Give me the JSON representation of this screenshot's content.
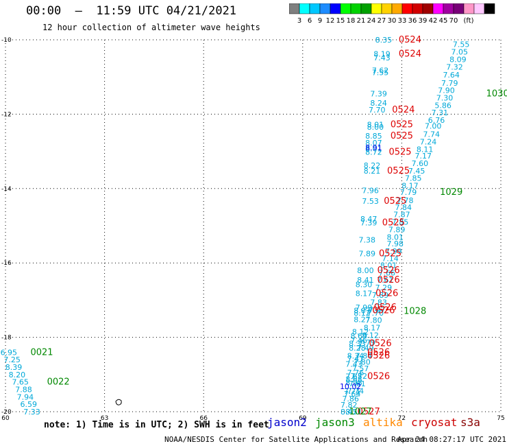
{
  "header": {
    "title": "00:00  –  11:59 UTC 04/21/2021",
    "subtitle": "12 hour collection of altimeter wave heights"
  },
  "colorbar": {
    "unit": "(ft)",
    "colors": [
      "#7f7f7f",
      "#00ffff",
      "#00c8ff",
      "#1e8cff",
      "#0000ff",
      "#00ff00",
      "#00d200",
      "#00a000",
      "#ffff00",
      "#ffd200",
      "#ffaa00",
      "#ff0000",
      "#d20000",
      "#a00000",
      "#ff00ff",
      "#a000a0",
      "#780078",
      "#ff96c8",
      "#ffc8ff",
      "#000000"
    ],
    "labels": [
      "3",
      "6",
      "9",
      "12",
      "15",
      "18",
      "21",
      "24",
      "27",
      "30",
      "33",
      "36",
      "39",
      "42",
      "45",
      "70"
    ]
  },
  "axes": {
    "x_ticks": [
      "60",
      "63",
      "66",
      "69",
      "72",
      "75"
    ],
    "y_ticks": [
      "-10",
      "-12",
      "-14",
      "-16",
      "-18",
      "-20"
    ],
    "xlim": [
      60,
      75
    ],
    "ylim": [
      -20,
      -10
    ]
  },
  "footer": {
    "note": "note: 1) Time is in UTC; 2) SWH is in feet",
    "sats": [
      {
        "name": "jason2",
        "color": "#0000cc"
      },
      {
        "name": "jason3",
        "color": "#008800"
      },
      {
        "name": "altika",
        "color": "#ff8800"
      },
      {
        "name": "cryosat",
        "color": "#cc0000"
      },
      {
        "name": "s3a",
        "color": "#880000"
      }
    ],
    "credit": "NOAA/NESDIS Center for Satellite Applications and Research",
    "timestamp": "Apr 24 08:27:17 UTC 2021"
  },
  "chart_data": {
    "type": "scatter",
    "cyan_points": [
      {
        "lon": 71.45,
        "lat": -10.0,
        "v": "8.35"
      },
      {
        "lon": 71.4,
        "lat": -10.38,
        "v": "8.19"
      },
      {
        "lon": 71.4,
        "lat": -10.48,
        "v": "7.43"
      },
      {
        "lon": 71.35,
        "lat": -10.82,
        "v": "7.62"
      },
      {
        "lon": 71.35,
        "lat": -10.88,
        "v": "7.55"
      },
      {
        "lon": 71.3,
        "lat": -11.45,
        "v": "7.39"
      },
      {
        "lon": 71.3,
        "lat": -11.7,
        "v": "8.24"
      },
      {
        "lon": 71.25,
        "lat": -11.88,
        "v": "7.70"
      },
      {
        "lon": 71.2,
        "lat": -12.28,
        "v": "8.01"
      },
      {
        "lon": 71.2,
        "lat": -12.34,
        "v": "8.00"
      },
      {
        "lon": 71.15,
        "lat": -12.58,
        "v": "8.85"
      },
      {
        "lon": 71.15,
        "lat": -12.77,
        "v": "8.07"
      },
      {
        "lon": 71.15,
        "lat": -12.92,
        "v": "8.01"
      },
      {
        "lon": 71.15,
        "lat": -13.02,
        "v": "8.72"
      },
      {
        "lon": 71.1,
        "lat": -13.38,
        "v": "8.22"
      },
      {
        "lon": 71.1,
        "lat": -13.52,
        "v": "8.21"
      },
      {
        "lon": 71.05,
        "lat": -14.05,
        "v": "7.96"
      },
      {
        "lon": 71.05,
        "lat": -14.34,
        "v": "7.53"
      },
      {
        "lon": 71.0,
        "lat": -14.82,
        "v": "8.47"
      },
      {
        "lon": 71.0,
        "lat": -14.92,
        "v": "7.39"
      },
      {
        "lon": 70.95,
        "lat": -15.38,
        "v": "7.38"
      },
      {
        "lon": 70.95,
        "lat": -15.75,
        "v": "7.89"
      },
      {
        "lon": 70.9,
        "lat": -16.2,
        "v": "8.00"
      },
      {
        "lon": 70.9,
        "lat": -16.46,
        "v": "8.41"
      },
      {
        "lon": 70.85,
        "lat": -16.58,
        "v": "8.30"
      },
      {
        "lon": 70.85,
        "lat": -16.82,
        "v": "8.17"
      },
      {
        "lon": 70.85,
        "lat": -17.2,
        "v": "7.99"
      },
      {
        "lon": 70.8,
        "lat": -17.28,
        "v": "8.07"
      },
      {
        "lon": 70.8,
        "lat": -17.34,
        "v": "8.12"
      },
      {
        "lon": 70.8,
        "lat": -17.52,
        "v": "8.27"
      },
      {
        "lon": 70.75,
        "lat": -17.85,
        "v": "8.12"
      },
      {
        "lon": 70.7,
        "lat": -17.96,
        "v": "8.69"
      },
      {
        "lon": 70.7,
        "lat": -18.08,
        "v": "7.46"
      },
      {
        "lon": 70.65,
        "lat": -18.16,
        "v": "8.33"
      },
      {
        "lon": 70.65,
        "lat": -18.28,
        "v": "8.28"
      },
      {
        "lon": 70.6,
        "lat": -18.5,
        "v": "8.34"
      },
      {
        "lon": 70.6,
        "lat": -18.58,
        "v": "7.47"
      },
      {
        "lon": 70.55,
        "lat": -18.72,
        "v": "7.43"
      },
      {
        "lon": 70.6,
        "lat": -18.95,
        "v": "7.76"
      },
      {
        "lon": 70.55,
        "lat": -19.05,
        "v": "7.65"
      },
      {
        "lon": 70.55,
        "lat": -19.12,
        "v": "8.68"
      },
      {
        "lon": 70.55,
        "lat": -19.22,
        "v": "8.98"
      },
      {
        "lon": 70.5,
        "lat": -19.45,
        "v": "7.71"
      },
      {
        "lon": 70.5,
        "lat": -19.52,
        "v": "7.64"
      },
      {
        "lon": 70.45,
        "lat": -19.65,
        "v": "7.86"
      },
      {
        "lon": 70.4,
        "lat": -19.82,
        "v": "7.82"
      },
      {
        "lon": 70.4,
        "lat": -20.0,
        "v": "8.47"
      },
      {
        "lon": 70.55,
        "lat": -20.0,
        "v": "8.51"
      },
      {
        "lon": 73.8,
        "lat": -10.12,
        "v": "7.55"
      },
      {
        "lon": 73.75,
        "lat": -10.32,
        "v": "7.05"
      },
      {
        "lon": 73.7,
        "lat": -10.53,
        "v": "8.09"
      },
      {
        "lon": 73.6,
        "lat": -10.73,
        "v": "7.32"
      },
      {
        "lon": 73.5,
        "lat": -10.94,
        "v": "7.64"
      },
      {
        "lon": 73.45,
        "lat": -11.16,
        "v": "7.79"
      },
      {
        "lon": 73.35,
        "lat": -11.36,
        "v": "7.90"
      },
      {
        "lon": 73.3,
        "lat": -11.56,
        "v": "7.30"
      },
      {
        "lon": 73.25,
        "lat": -11.76,
        "v": "5.86"
      },
      {
        "lon": 73.15,
        "lat": -11.96,
        "v": "7.31"
      },
      {
        "lon": 73.05,
        "lat": -12.16,
        "v": "6.76"
      },
      {
        "lon": 72.95,
        "lat": -12.32,
        "v": "7.00"
      },
      {
        "lon": 72.9,
        "lat": -12.54,
        "v": "7.74"
      },
      {
        "lon": 72.8,
        "lat": -12.74,
        "v": "7.24"
      },
      {
        "lon": 72.7,
        "lat": -12.94,
        "v": "8.11"
      },
      {
        "lon": 72.65,
        "lat": -13.12,
        "v": "7.17"
      },
      {
        "lon": 72.55,
        "lat": -13.32,
        "v": "7.60"
      },
      {
        "lon": 72.45,
        "lat": -13.52,
        "v": "7.45"
      },
      {
        "lon": 72.35,
        "lat": -13.72,
        "v": "7.85"
      },
      {
        "lon": 72.25,
        "lat": -13.92,
        "v": "8.17"
      },
      {
        "lon": 72.2,
        "lat": -14.1,
        "v": "7.79"
      },
      {
        "lon": 72.1,
        "lat": -14.32,
        "v": "7.78"
      },
      {
        "lon": 72.05,
        "lat": -14.5,
        "v": "7.84"
      },
      {
        "lon": 72.0,
        "lat": -14.7,
        "v": "7.87"
      },
      {
        "lon": 71.95,
        "lat": -14.9,
        "v": "7.85"
      },
      {
        "lon": 71.85,
        "lat": -15.1,
        "v": "7.89"
      },
      {
        "lon": 71.8,
        "lat": -15.3,
        "v": "8.01"
      },
      {
        "lon": 71.8,
        "lat": -15.48,
        "v": "7.98"
      },
      {
        "lon": 71.75,
        "lat": -15.68,
        "v": "7.99"
      },
      {
        "lon": 71.65,
        "lat": -15.88,
        "v": "7.14"
      },
      {
        "lon": 71.6,
        "lat": -16.06,
        "v": "8.01"
      },
      {
        "lon": 71.55,
        "lat": -16.26,
        "v": "7.66"
      },
      {
        "lon": 71.5,
        "lat": -16.46,
        "v": "7.61"
      },
      {
        "lon": 71.45,
        "lat": -16.66,
        "v": "7.29"
      },
      {
        "lon": 71.35,
        "lat": -16.86,
        "v": "7.89"
      },
      {
        "lon": 71.3,
        "lat": -17.06,
        "v": "7.83"
      },
      {
        "lon": 71.25,
        "lat": -17.26,
        "v": "7.97"
      },
      {
        "lon": 71.2,
        "lat": -17.34,
        "v": "7.70"
      },
      {
        "lon": 71.15,
        "lat": -17.54,
        "v": "7.80"
      },
      {
        "lon": 71.1,
        "lat": -17.74,
        "v": "8.17"
      },
      {
        "lon": 71.05,
        "lat": -17.94,
        "v": "8.12"
      },
      {
        "lon": 70.95,
        "lat": -18.14,
        "v": "7.79"
      },
      {
        "lon": 70.9,
        "lat": -18.28,
        "v": "7.49"
      },
      {
        "lon": 70.85,
        "lat": -18.5,
        "v": "7.84"
      },
      {
        "lon": 70.8,
        "lat": -18.66,
        "v": "7.80"
      },
      {
        "lon": 70.75,
        "lat": -18.84,
        "v": "7.57"
      },
      {
        "lon": 70.7,
        "lat": -19.04,
        "v": "7.72"
      },
      {
        "lon": 70.65,
        "lat": -19.24,
        "v": "7.61"
      },
      {
        "lon": 70.6,
        "lat": -19.44,
        "v": "7.74"
      },
      {
        "lon": 60.1,
        "lat": -18.4,
        "v": "6.95"
      },
      {
        "lon": 60.2,
        "lat": -18.6,
        "v": "7.25"
      },
      {
        "lon": 60.25,
        "lat": -18.8,
        "v": "8.39"
      },
      {
        "lon": 60.35,
        "lat": -19.0,
        "v": "8.20"
      },
      {
        "lon": 60.45,
        "lat": -19.2,
        "v": "7.65"
      },
      {
        "lon": 60.55,
        "lat": -19.4,
        "v": "7.88"
      },
      {
        "lon": 60.6,
        "lat": -19.6,
        "v": "7.94"
      },
      {
        "lon": 60.7,
        "lat": -19.8,
        "v": "6.59"
      },
      {
        "lon": 60.8,
        "lat": -20.0,
        "v": "7.33"
      }
    ],
    "blue_points": [
      {
        "lon": 71.15,
        "lat": -12.9,
        "v": "8.91"
      },
      {
        "lon": 70.45,
        "lat": -19.32,
        "v": "10.02"
      }
    ],
    "red_labels": [
      {
        "lon": 72.25,
        "lat": -10.0,
        "v": "0524"
      },
      {
        "lon": 72.25,
        "lat": -10.38,
        "v": "0524"
      },
      {
        "lon": 72.05,
        "lat": -11.88,
        "v": "0524"
      },
      {
        "lon": 72.0,
        "lat": -12.28,
        "v": "0525"
      },
      {
        "lon": 72.0,
        "lat": -12.58,
        "v": "0525"
      },
      {
        "lon": 71.95,
        "lat": -13.02,
        "v": "0525"
      },
      {
        "lon": 71.9,
        "lat": -13.52,
        "v": "0525"
      },
      {
        "lon": 71.8,
        "lat": -14.34,
        "v": "0525"
      },
      {
        "lon": 71.75,
        "lat": -14.92,
        "v": "0525"
      },
      {
        "lon": 71.65,
        "lat": -15.75,
        "v": "0525"
      },
      {
        "lon": 71.6,
        "lat": -16.2,
        "v": "0526"
      },
      {
        "lon": 71.6,
        "lat": -16.46,
        "v": "0526"
      },
      {
        "lon": 71.55,
        "lat": -16.82,
        "v": "0526"
      },
      {
        "lon": 71.5,
        "lat": -17.2,
        "v": "0526"
      },
      {
        "lon": 71.45,
        "lat": -17.28,
        "v": "0526"
      },
      {
        "lon": 71.35,
        "lat": -18.16,
        "v": "0526"
      },
      {
        "lon": 71.3,
        "lat": -18.4,
        "v": "0526"
      },
      {
        "lon": 71.3,
        "lat": -18.5,
        "v": "0526"
      },
      {
        "lon": 71.3,
        "lat": -19.05,
        "v": "0526"
      },
      {
        "lon": 71.0,
        "lat": -20.0,
        "v": "0527"
      }
    ],
    "green_labels": [
      {
        "lon": 74.9,
        "lat": -11.45,
        "v": "1030"
      },
      {
        "lon": 73.5,
        "lat": -14.1,
        "v": "1029"
      },
      {
        "lon": 72.4,
        "lat": -17.3,
        "v": "1028"
      },
      {
        "lon": 61.1,
        "lat": -18.4,
        "v": "0021"
      },
      {
        "lon": 61.6,
        "lat": -19.2,
        "v": "0022"
      },
      {
        "lon": 70.75,
        "lat": -20.0,
        "v": "1027"
      }
    ],
    "gridlines": true
  }
}
